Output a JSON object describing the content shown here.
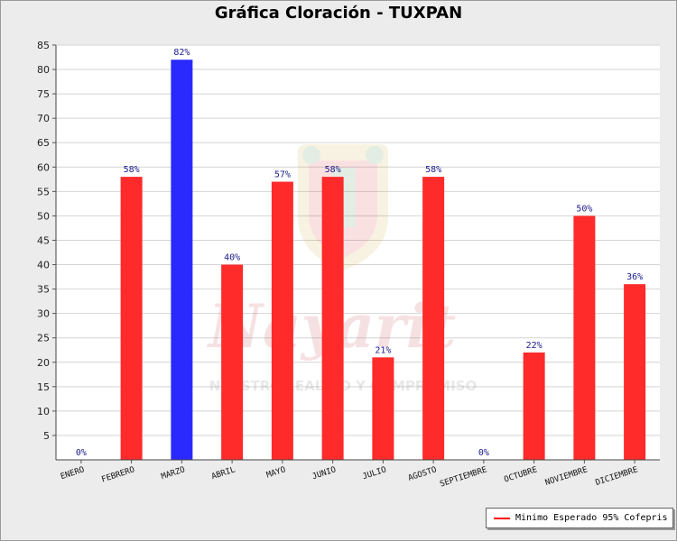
{
  "chart_data": {
    "type": "bar",
    "title": "Gráfica Cloración - TUXPAN",
    "xlabel": "",
    "ylabel": "",
    "ylim": [
      0,
      85
    ],
    "yticks": [
      5,
      10,
      15,
      20,
      25,
      30,
      35,
      40,
      45,
      50,
      55,
      60,
      65,
      70,
      75,
      80,
      85
    ],
    "grid": true,
    "categories": [
      "ENERO",
      "FEBRERO",
      "MARZO",
      "ABRIL",
      "MAYO",
      "JUNIO",
      "JULIO",
      "AGOSTO",
      "SEPTIEMBRE",
      "OCTUBRE",
      "NOVIEMBRE",
      "DICIEMBRE"
    ],
    "values": [
      0,
      58,
      82,
      40,
      57,
      58,
      21,
      58,
      0,
      22,
      50,
      36
    ],
    "data_labels": [
      "0%",
      "58%",
      "82%",
      "40%",
      "57%",
      "58%",
      "21%",
      "58%",
      "0%",
      "22%",
      "50%",
      "36%"
    ],
    "bar_colors": [
      "#ff2a2a",
      "#ff2a2a",
      "#2a2aff",
      "#ff2a2a",
      "#ff2a2a",
      "#ff2a2a",
      "#ff2a2a",
      "#ff2a2a",
      "#ff2a2a",
      "#ff2a2a",
      "#ff2a2a",
      "#ff2a2a"
    ],
    "legend": {
      "position": "bottom-right",
      "label": "Minimo Esperado 95% Cofepris",
      "color": "#ff0000"
    },
    "watermark": {
      "text_main": "Nayarit",
      "text_sub": "NUESTRO LEALTAD Y COMPROMISO",
      "icon": "state-seal-icon"
    }
  }
}
